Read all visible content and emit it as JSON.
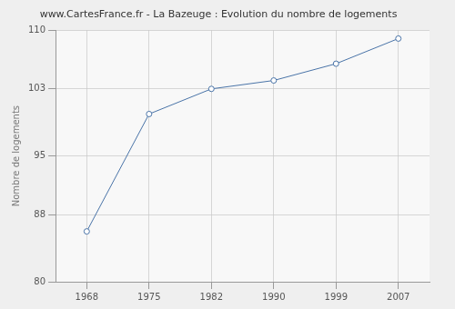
{
  "chart_data": {
    "type": "line",
    "title": "www.CartesFrance.fr - La Bazeuge : Evolution du nombre de logements",
    "ylabel": "Nombre de logements",
    "categories": [
      "1968",
      "1975",
      "1982",
      "1990",
      "1999",
      "2007"
    ],
    "values": [
      86,
      100,
      103,
      104,
      106,
      109
    ],
    "color": "#4a74a8",
    "marker": "circle",
    "ylim": [
      80,
      110
    ],
    "yticks": [
      80,
      88,
      95,
      103,
      110
    ],
    "grid": true
  }
}
